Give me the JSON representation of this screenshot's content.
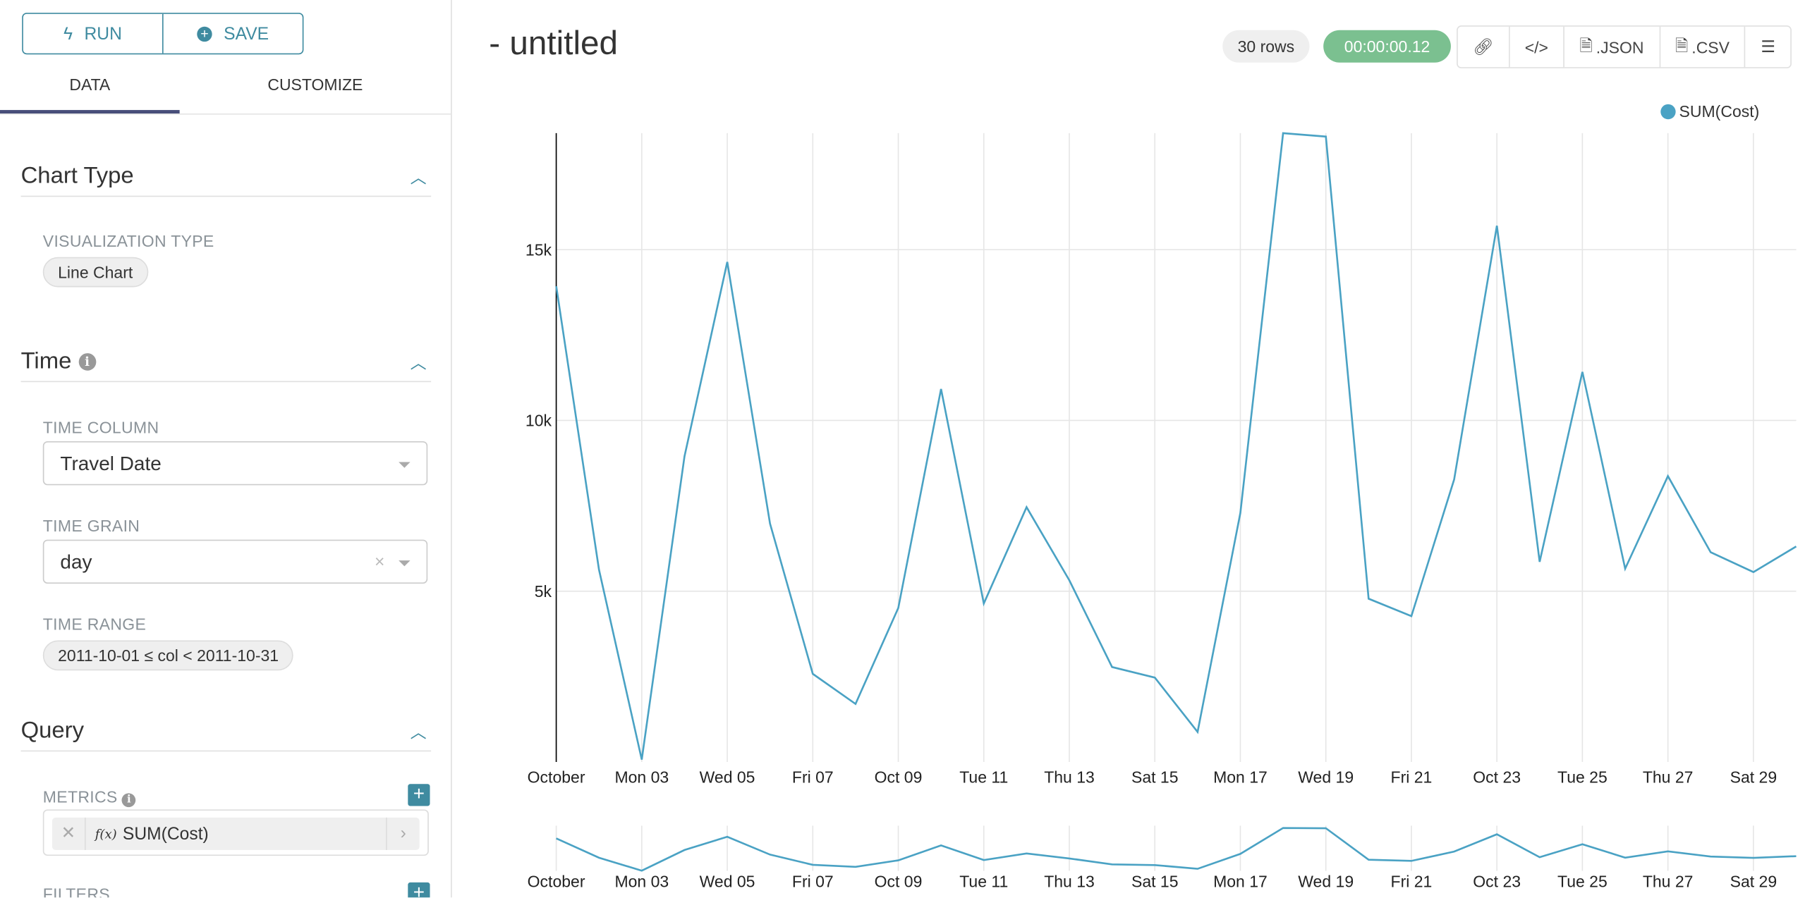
{
  "toolbar": {
    "run_label": "RUN",
    "save_label": "SAVE"
  },
  "tabs": [
    {
      "label": "DATA",
      "active": true
    },
    {
      "label": "CUSTOMIZE",
      "active": false
    }
  ],
  "sections": {
    "chart_type": {
      "title": "Chart Type",
      "viz_label": "VISUALIZATION TYPE",
      "viz_value": "Line Chart"
    },
    "time": {
      "title": "Time",
      "time_column_label": "TIME COLUMN",
      "time_column_value": "Travel Date",
      "time_grain_label": "TIME GRAIN",
      "time_grain_value": "day",
      "time_range_label": "TIME RANGE",
      "time_range_value": "2011-10-01 ≤ col < 2011-10-31"
    },
    "query": {
      "title": "Query",
      "metrics_label": "METRICS",
      "metric_fx": "f(x)",
      "metric_value": "SUM(Cost)",
      "filters_label": "FILTERS"
    }
  },
  "header": {
    "title": "- untitled",
    "rows_badge": "30 rows",
    "timer_badge": "00:00:00.12",
    "json_label": ".JSON",
    "csv_label": ".CSV"
  },
  "colors": {
    "accent": "#3f8ba0",
    "line": "#4aa2c4",
    "timer": "#7bc090"
  },
  "chart_data": {
    "type": "line",
    "title": "",
    "xlabel": "",
    "ylabel": "",
    "x": [
      "2011-10-01",
      "2011-10-02",
      "2011-10-03",
      "2011-10-04",
      "2011-10-05",
      "2011-10-06",
      "2011-10-07",
      "2011-10-08",
      "2011-10-09",
      "2011-10-10",
      "2011-10-11",
      "2011-10-12",
      "2011-10-13",
      "2011-10-14",
      "2011-10-15",
      "2011-10-16",
      "2011-10-17",
      "2011-10-18",
      "2011-10-19",
      "2011-10-20",
      "2011-10-21",
      "2011-10-22",
      "2011-10-23",
      "2011-10-24",
      "2011-10-25",
      "2011-10-26",
      "2011-10-27",
      "2011-10-28",
      "2011-10-29",
      "2011-10-30"
    ],
    "series": [
      {
        "name": "SUM(Cost)",
        "values": [
          13930,
          5630,
          70,
          8950,
          14640,
          6980,
          2580,
          1700,
          4510,
          10920,
          4640,
          7460,
          5320,
          2780,
          2470,
          880,
          7290,
          18410,
          18310,
          4780,
          4270,
          8270,
          15700,
          5860,
          11420,
          5660,
          8370,
          6140,
          5560,
          6310
        ]
      }
    ],
    "x_ticks": [
      {
        "i": 0,
        "label": "October"
      },
      {
        "i": 2,
        "label": "Mon 03"
      },
      {
        "i": 4,
        "label": "Wed 05"
      },
      {
        "i": 6,
        "label": "Fri 07"
      },
      {
        "i": 8,
        "label": "Oct 09"
      },
      {
        "i": 10,
        "label": "Tue 11"
      },
      {
        "i": 12,
        "label": "Thu 13"
      },
      {
        "i": 14,
        "label": "Sat 15"
      },
      {
        "i": 16,
        "label": "Mon 17"
      },
      {
        "i": 18,
        "label": "Wed 19"
      },
      {
        "i": 20,
        "label": "Fri 21"
      },
      {
        "i": 22,
        "label": "Oct 23"
      },
      {
        "i": 24,
        "label": "Tue 25"
      },
      {
        "i": 26,
        "label": "Thu 27"
      },
      {
        "i": 28,
        "label": "Sat 29"
      }
    ],
    "y_ticks": [
      {
        "v": 5000,
        "label": "5k"
      },
      {
        "v": 10000,
        "label": "10k"
      },
      {
        "v": 15000,
        "label": "15k"
      }
    ],
    "ylim": [
      0,
      18410
    ],
    "grid": true,
    "legend": "top-right"
  }
}
